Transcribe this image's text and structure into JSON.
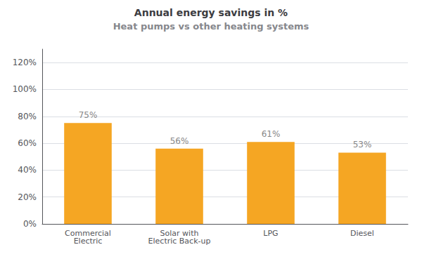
{
  "chart_data": {
    "type": "bar",
    "title": "Annual energy savings in %",
    "subtitle": "Heat pumps vs other heating systems",
    "categories": [
      "Commercial\nElectric",
      "Solar with\nElectric Back-up",
      "LPG",
      "Diesel"
    ],
    "values": [
      75,
      56,
      61,
      53
    ],
    "value_labels": [
      "75%",
      "56%",
      "61%",
      "53%"
    ],
    "data_labels": true,
    "color": "#f5a623",
    "ylim": [
      0,
      130
    ],
    "yticks": [
      {
        "value": 0,
        "label": "0%"
      },
      {
        "value": 20,
        "label": "20%"
      },
      {
        "value": 40,
        "label": "40%"
      },
      {
        "value": 60,
        "label": "60%"
      },
      {
        "value": 80,
        "label": "80%"
      },
      {
        "value": 100,
        "label": "100%"
      },
      {
        "value": 120,
        "label": "120%"
      }
    ],
    "grid": true
  }
}
